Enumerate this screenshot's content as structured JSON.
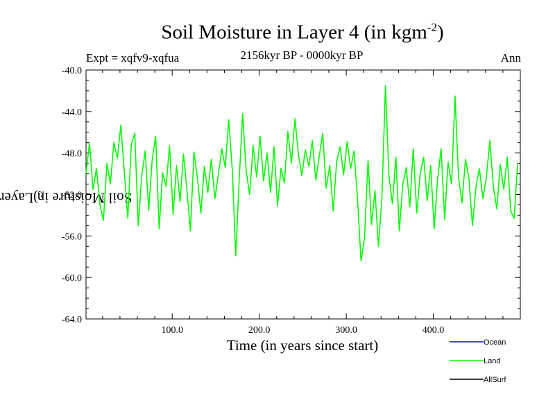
{
  "title": {
    "main": "Soil Moisture in Layer 4 (in kgm",
    "exponent": "-2",
    "close": ")"
  },
  "subtitle": "2156kyr BP - 0000kyr BP",
  "experiment_label": "Expt = xqfv9-xqfua",
  "season_label": "Ann",
  "colors": {
    "ocean": "#0000ff",
    "land": "#00ff00",
    "allsurf": "#000000",
    "axis": "#000000"
  },
  "chart_data": {
    "type": "line",
    "title": "Soil Moisture in Layer 4 (in kgm-2)",
    "subtitle": "2156kyr BP - 0000kyr BP",
    "xlabel": "Time (in years since start)",
    "ylabel": {
      "main": "Soil Moisture in Layer 4 (in kgm",
      "exponent": "-2",
      "close": ")"
    },
    "xlim": [
      1,
      500
    ],
    "ylim": [
      -64,
      -40
    ],
    "x_ticks": [
      100,
      200,
      300,
      400
    ],
    "x_tick_labels": [
      "100.0",
      "200.0",
      "300.0",
      "400.0"
    ],
    "y_ticks": [
      -40,
      -44,
      -48,
      -52,
      -56,
      -60,
      -64
    ],
    "y_tick_labels": [
      "-40.0",
      "-44.0",
      "-48.0",
      "-52.0",
      "-56.0",
      "-60.0",
      "-64.0"
    ],
    "legend": [
      {
        "name": "Ocean",
        "color": "#0000ff"
      },
      {
        "name": "Land",
        "color": "#00ff00"
      },
      {
        "name": "AllSurf",
        "color": "#000000"
      }
    ],
    "series": [
      {
        "name": "Land",
        "color": "#00ff00",
        "x": [
          1,
          5,
          9,
          13,
          17,
          21,
          25,
          29,
          33,
          37,
          41,
          45,
          49,
          53,
          57,
          61,
          65,
          69,
          73,
          77,
          81,
          85,
          89,
          93,
          97,
          101,
          105,
          109,
          113,
          117,
          121,
          125,
          129,
          133,
          137,
          141,
          145,
          149,
          153,
          157,
          161,
          165,
          169,
          173,
          177,
          181,
          185,
          189,
          193,
          197,
          201,
          205,
          209,
          213,
          217,
          221,
          225,
          229,
          233,
          237,
          241,
          245,
          249,
          253,
          257,
          261,
          265,
          269,
          273,
          277,
          281,
          285,
          289,
          293,
          297,
          301,
          305,
          309,
          313,
          317,
          321,
          325,
          329,
          333,
          337,
          341,
          345,
          349,
          353,
          357,
          361,
          365,
          369,
          373,
          377,
          381,
          385,
          389,
          393,
          397,
          401,
          405,
          409,
          413,
          417,
          421,
          425,
          429,
          433,
          437,
          441,
          445,
          449,
          453,
          457,
          461,
          465,
          469,
          473,
          477,
          481,
          485,
          489,
          493,
          497
        ],
        "values": [
          -50.0,
          -47.0,
          -51.5,
          -49.5,
          -53.0,
          -54.5,
          -49.0,
          -51.0,
          -47.0,
          -48.5,
          -45.3,
          -49.8,
          -54.3,
          -47.2,
          -46.1,
          -55.0,
          -50.2,
          -47.8,
          -53.5,
          -48.7,
          -46.4,
          -55.3,
          -49.9,
          -51.2,
          -47.3,
          -53.9,
          -49.2,
          -52.7,
          -48.1,
          -51.6,
          -55.5,
          -47.9,
          -50.4,
          -53.8,
          -49.3,
          -51.8,
          -48.6,
          -52.4,
          -50.1,
          -47.6,
          -49.4,
          -44.8,
          -49.6,
          -57.9,
          -50.5,
          -44.2,
          -49.7,
          -52.0,
          -47.3,
          -50.3,
          -46.4,
          -50.7,
          -48.0,
          -51.8,
          -47.4,
          -53.1,
          -49.5,
          -50.9,
          -45.9,
          -49.0,
          -44.7,
          -48.1,
          -50.2,
          -47.7,
          -49.3,
          -46.8,
          -50.6,
          -48.3,
          -46.1,
          -51.4,
          -49.2,
          -53.6,
          -48.8,
          -47.4,
          -50.1,
          -46.9,
          -49.5,
          -47.8,
          -52.5,
          -58.4,
          -56.2,
          -48.7,
          -54.9,
          -51.6,
          -57.0,
          -52.3,
          -41.5,
          -50.2,
          -52.9,
          -48.4,
          -55.5,
          -51.0,
          -49.4,
          -53.2,
          -47.6,
          -53.8,
          -50.0,
          -48.4,
          -52.6,
          -49.2,
          -55.3,
          -50.5,
          -47.6,
          -54.4,
          -48.9,
          -51.0,
          -42.5,
          -50.3,
          -52.8,
          -48.6,
          -50.5,
          -55.0,
          -51.3,
          -49.5,
          -52.4,
          -50.3,
          -46.8,
          -51.2,
          -53.4,
          -49.1,
          -51.5,
          -48.4,
          -53.6,
          -54.3,
          -49.0
        ]
      }
    ]
  }
}
